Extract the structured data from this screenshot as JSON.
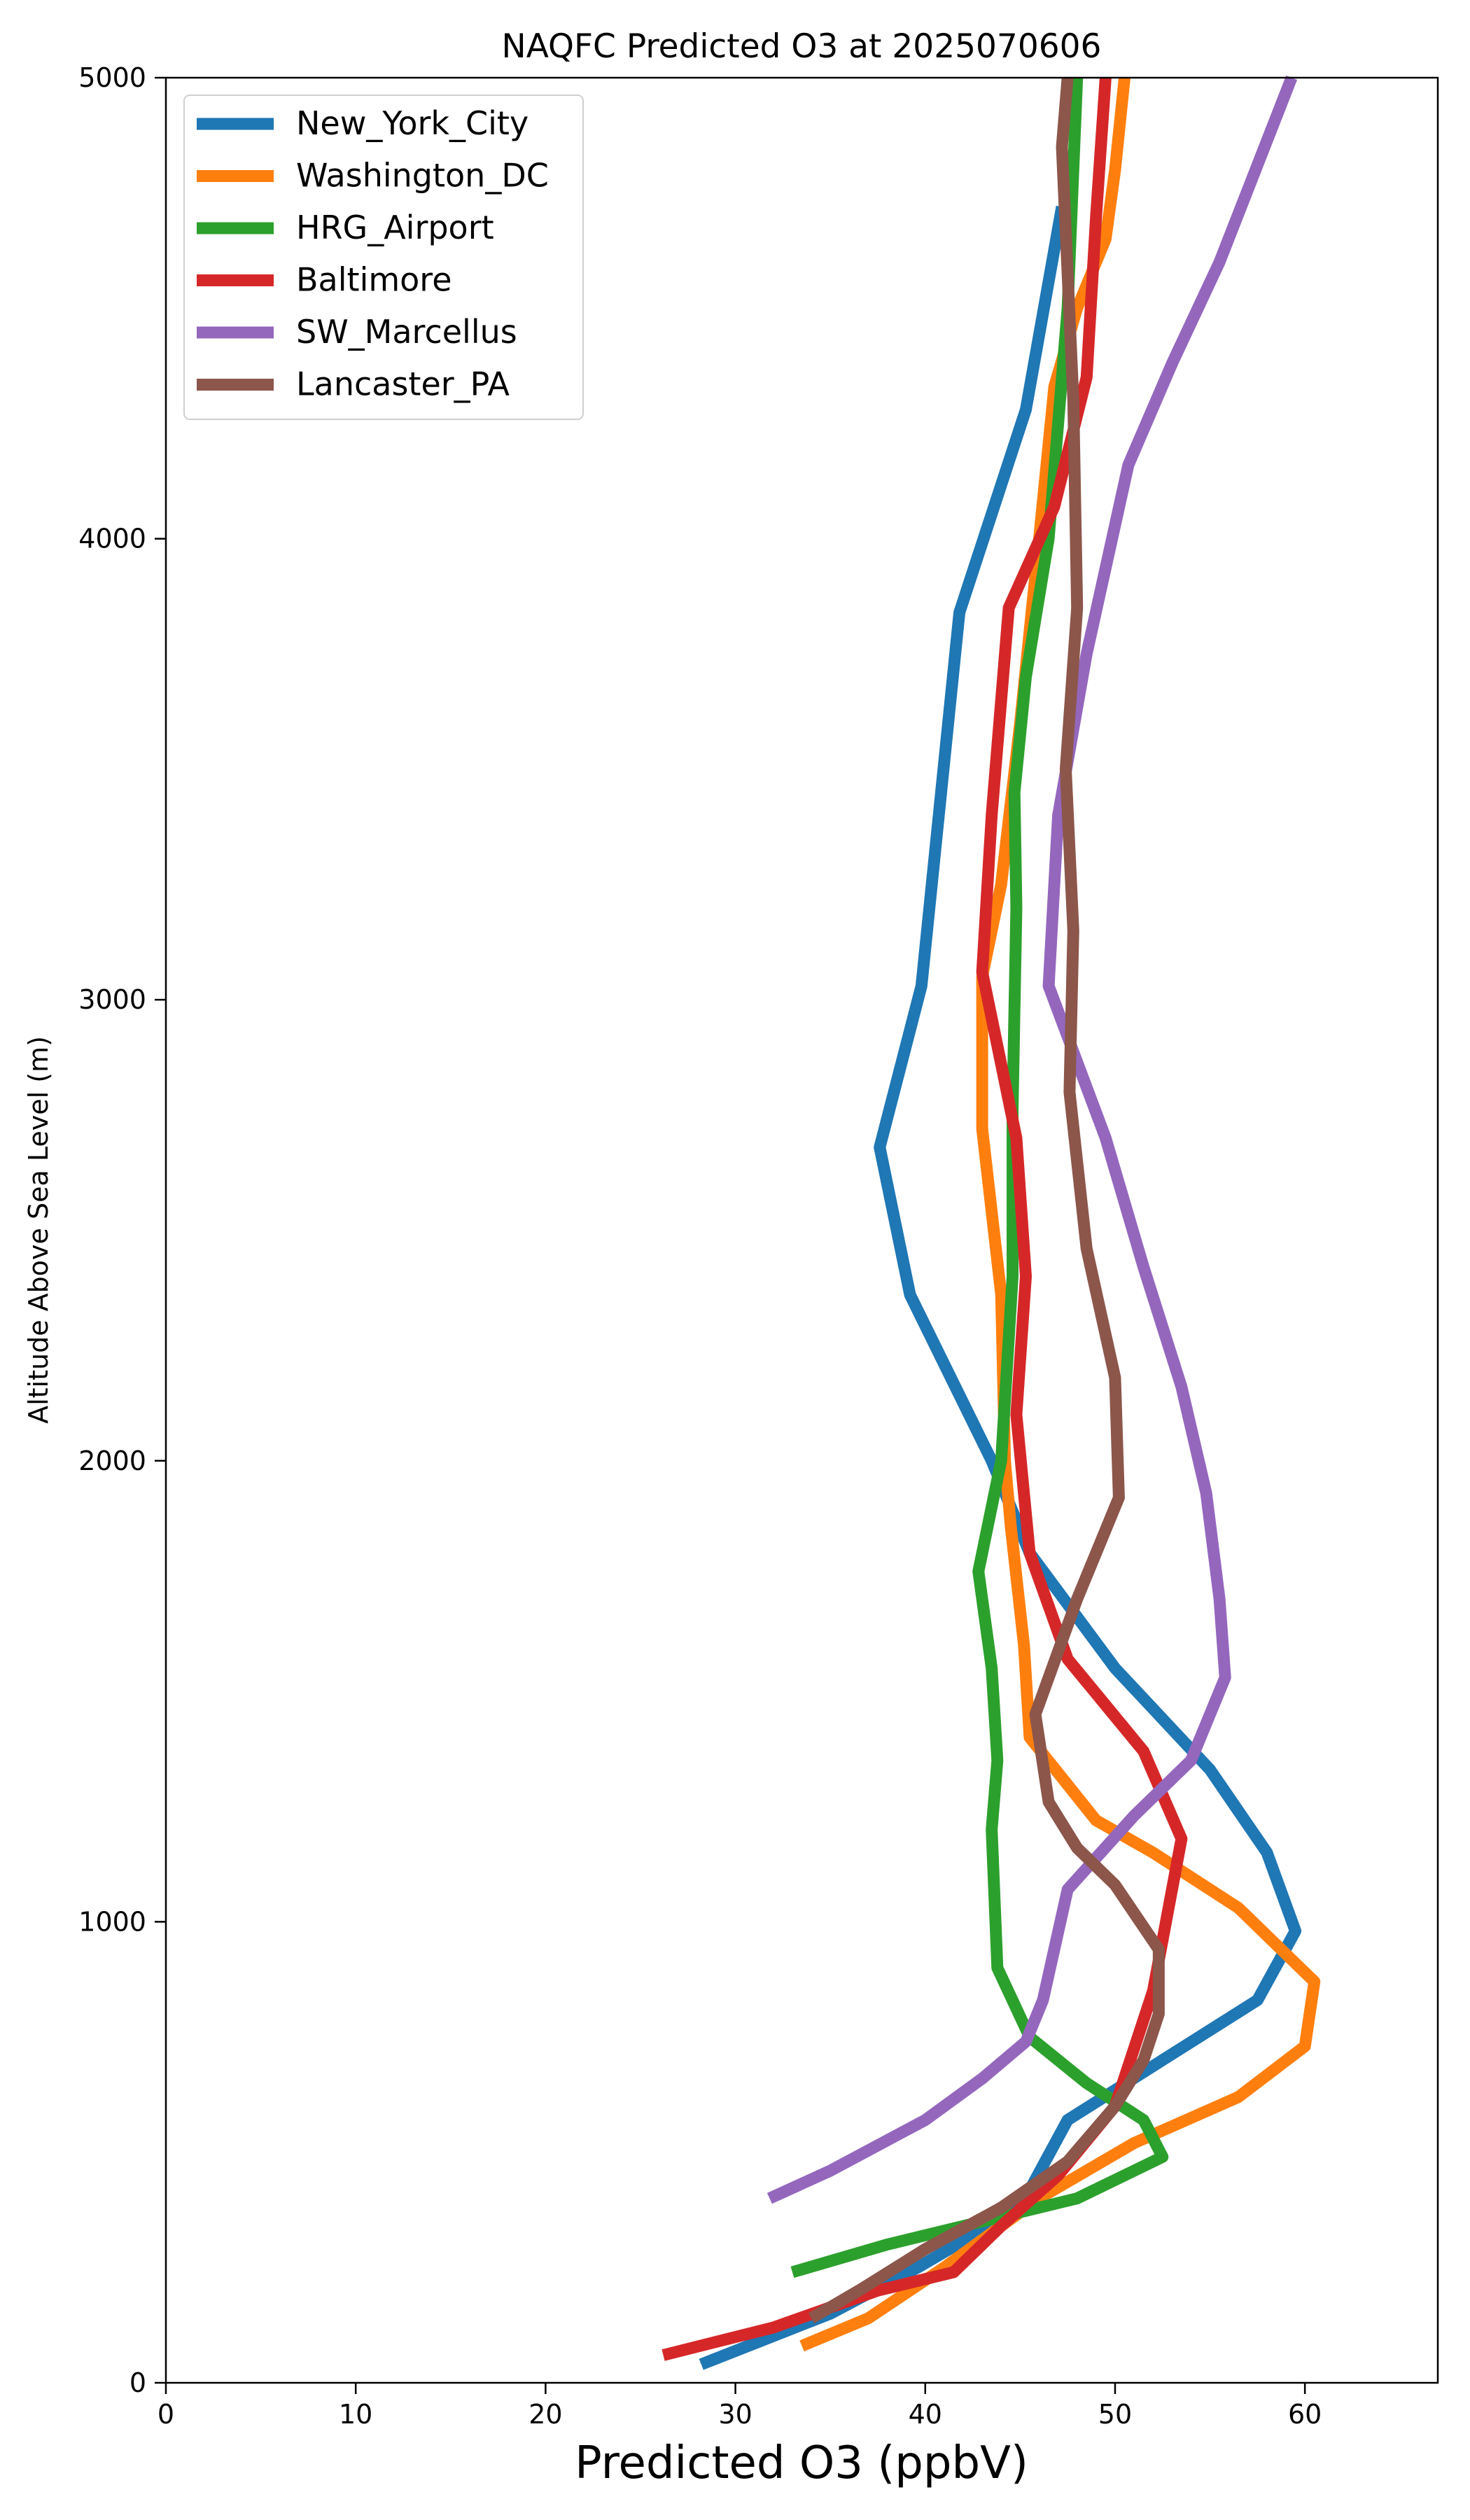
{
  "chart_data": {
    "type": "line",
    "title": "NAQFC Predicted O3 at 2025070606",
    "xlabel": "Predicted O3 (ppbV)",
    "ylabel": "Altitude Above Sea Level (m)",
    "xlim": [
      0,
      67
    ],
    "ylim": [
      0,
      5000
    ],
    "x_ticks": [
      0,
      10,
      20,
      30,
      40,
      50,
      60
    ],
    "y_ticks": [
      0,
      1000,
      2000,
      3000,
      4000,
      5000
    ],
    "x_tick_labels": [
      "0",
      "10",
      "20",
      "30",
      "40",
      "50",
      "60"
    ],
    "y_tick_labels": [
      "0",
      "1000",
      "2000",
      "3000",
      "4000",
      "5000"
    ],
    "legend_position": "top-left",
    "grid": false,
    "series": [
      {
        "name": "New_York_City",
        "color": "#1f77b4",
        "points": [
          {
            "x": 28.2,
            "y": 40
          },
          {
            "x": 35.0,
            "y": 150
          },
          {
            "x": 39.6,
            "y": 250
          },
          {
            "x": 45.0,
            "y": 380
          },
          {
            "x": 47.5,
            "y": 570
          },
          {
            "x": 52.5,
            "y": 700
          },
          {
            "x": 57.5,
            "y": 830
          },
          {
            "x": 59.5,
            "y": 980
          },
          {
            "x": 58.0,
            "y": 1150
          },
          {
            "x": 55.0,
            "y": 1330
          },
          {
            "x": 50.0,
            "y": 1550
          },
          {
            "x": 45.5,
            "y": 1800
          },
          {
            "x": 43.5,
            "y": 2000
          },
          {
            "x": 39.2,
            "y": 2360
          },
          {
            "x": 37.6,
            "y": 2680
          },
          {
            "x": 39.8,
            "y": 3030
          },
          {
            "x": 41.8,
            "y": 3840
          },
          {
            "x": 45.3,
            "y": 4280
          },
          {
            "x": 47.2,
            "y": 4720
          }
        ]
      },
      {
        "name": "Washington_DC",
        "color": "#ff7f0e",
        "points": [
          {
            "x": 33.5,
            "y": 80
          },
          {
            "x": 37.0,
            "y": 140
          },
          {
            "x": 41.0,
            "y": 250
          },
          {
            "x": 46.0,
            "y": 400
          },
          {
            "x": 51.0,
            "y": 520
          },
          {
            "x": 56.5,
            "y": 620
          },
          {
            "x": 60.0,
            "y": 730
          },
          {
            "x": 60.5,
            "y": 870
          },
          {
            "x": 56.5,
            "y": 1030
          },
          {
            "x": 52.0,
            "y": 1150
          },
          {
            "x": 49.0,
            "y": 1220
          },
          {
            "x": 45.5,
            "y": 1400
          },
          {
            "x": 45.2,
            "y": 1600
          },
          {
            "x": 44.5,
            "y": 1860
          },
          {
            "x": 44.2,
            "y": 2000
          },
          {
            "x": 44.0,
            "y": 2360
          },
          {
            "x": 43.0,
            "y": 2720
          },
          {
            "x": 43.0,
            "y": 3050
          },
          {
            "x": 44.0,
            "y": 3250
          },
          {
            "x": 45.0,
            "y": 3600
          },
          {
            "x": 46.0,
            "y": 4000
          },
          {
            "x": 46.8,
            "y": 4330
          },
          {
            "x": 48.0,
            "y": 4500
          },
          {
            "x": 49.5,
            "y": 4650
          },
          {
            "x": 50.0,
            "y": 4800
          },
          {
            "x": 50.5,
            "y": 5000
          }
        ]
      },
      {
        "name": "HRG_Airport",
        "color": "#2ca02c",
        "points": [
          {
            "x": 33.0,
            "y": 240
          },
          {
            "x": 38.0,
            "y": 300
          },
          {
            "x": 43.0,
            "y": 350
          },
          {
            "x": 48.0,
            "y": 400
          },
          {
            "x": 52.5,
            "y": 490
          },
          {
            "x": 51.5,
            "y": 570
          },
          {
            "x": 48.5,
            "y": 650
          },
          {
            "x": 45.5,
            "y": 750
          },
          {
            "x": 43.8,
            "y": 900
          },
          {
            "x": 43.5,
            "y": 1200
          },
          {
            "x": 43.8,
            "y": 1350
          },
          {
            "x": 43.5,
            "y": 1550
          },
          {
            "x": 42.8,
            "y": 1760
          },
          {
            "x": 44.0,
            "y": 2000
          },
          {
            "x": 44.6,
            "y": 2400
          },
          {
            "x": 44.6,
            "y": 2760
          },
          {
            "x": 44.8,
            "y": 3200
          },
          {
            "x": 44.7,
            "y": 3450
          },
          {
            "x": 45.3,
            "y": 3700
          },
          {
            "x": 46.5,
            "y": 4000
          },
          {
            "x": 47.5,
            "y": 4500
          },
          {
            "x": 48.0,
            "y": 5000
          }
        ]
      },
      {
        "name": "Baltimore",
        "color": "#d62728",
        "points": [
          {
            "x": 26.2,
            "y": 60
          },
          {
            "x": 32.0,
            "y": 120
          },
          {
            "x": 37.5,
            "y": 200
          },
          {
            "x": 41.5,
            "y": 240
          },
          {
            "x": 44.0,
            "y": 340
          },
          {
            "x": 47.0,
            "y": 450
          },
          {
            "x": 50.0,
            "y": 600
          },
          {
            "x": 52.0,
            "y": 850
          },
          {
            "x": 53.5,
            "y": 1180
          },
          {
            "x": 51.5,
            "y": 1370
          },
          {
            "x": 47.5,
            "y": 1570
          },
          {
            "x": 45.5,
            "y": 1800
          },
          {
            "x": 44.8,
            "y": 2100
          },
          {
            "x": 45.3,
            "y": 2400
          },
          {
            "x": 44.8,
            "y": 2700
          },
          {
            "x": 43.0,
            "y": 3060
          },
          {
            "x": 43.5,
            "y": 3400
          },
          {
            "x": 44.4,
            "y": 3850
          },
          {
            "x": 46.8,
            "y": 4070
          },
          {
            "x": 48.5,
            "y": 4350
          },
          {
            "x": 49.0,
            "y": 4700
          },
          {
            "x": 49.5,
            "y": 5000
          }
        ]
      },
      {
        "name": "SW_Marcellus",
        "color": "#9467bd",
        "points": [
          {
            "x": 31.8,
            "y": 400
          },
          {
            "x": 35.0,
            "y": 460
          },
          {
            "x": 40.0,
            "y": 570
          },
          {
            "x": 43.0,
            "y": 660
          },
          {
            "x": 45.3,
            "y": 740
          },
          {
            "x": 46.2,
            "y": 830
          },
          {
            "x": 47.5,
            "y": 1070
          },
          {
            "x": 51.0,
            "y": 1230
          },
          {
            "x": 54.0,
            "y": 1350
          },
          {
            "x": 55.8,
            "y": 1530
          },
          {
            "x": 55.5,
            "y": 1700
          },
          {
            "x": 54.8,
            "y": 1930
          },
          {
            "x": 53.5,
            "y": 2160
          },
          {
            "x": 51.5,
            "y": 2420
          },
          {
            "x": 49.5,
            "y": 2700
          },
          {
            "x": 46.5,
            "y": 3030
          },
          {
            "x": 47.0,
            "y": 3400
          },
          {
            "x": 48.5,
            "y": 3750
          },
          {
            "x": 50.7,
            "y": 4160
          },
          {
            "x": 53.0,
            "y": 4380
          },
          {
            "x": 55.5,
            "y": 4600
          },
          {
            "x": 59.3,
            "y": 5000
          }
        ]
      },
      {
        "name": "Lancaster_PA",
        "color": "#8c564b",
        "points": [
          {
            "x": 34.0,
            "y": 140
          },
          {
            "x": 36.5,
            "y": 200
          },
          {
            "x": 40.0,
            "y": 290
          },
          {
            "x": 44.0,
            "y": 380
          },
          {
            "x": 47.5,
            "y": 480
          },
          {
            "x": 50.0,
            "y": 600
          },
          {
            "x": 51.5,
            "y": 700
          },
          {
            "x": 52.3,
            "y": 800
          },
          {
            "x": 52.3,
            "y": 940
          },
          {
            "x": 50.0,
            "y": 1080
          },
          {
            "x": 48.0,
            "y": 1160
          },
          {
            "x": 46.5,
            "y": 1260
          },
          {
            "x": 45.8,
            "y": 1450
          },
          {
            "x": 48.0,
            "y": 1700
          },
          {
            "x": 50.2,
            "y": 1920
          },
          {
            "x": 50.0,
            "y": 2180
          },
          {
            "x": 48.5,
            "y": 2460
          },
          {
            "x": 47.6,
            "y": 2800
          },
          {
            "x": 47.8,
            "y": 3150
          },
          {
            "x": 47.4,
            "y": 3500
          },
          {
            "x": 48.0,
            "y": 3850
          },
          {
            "x": 47.8,
            "y": 4300
          },
          {
            "x": 47.2,
            "y": 4850
          },
          {
            "x": 47.5,
            "y": 5000
          }
        ]
      }
    ]
  }
}
